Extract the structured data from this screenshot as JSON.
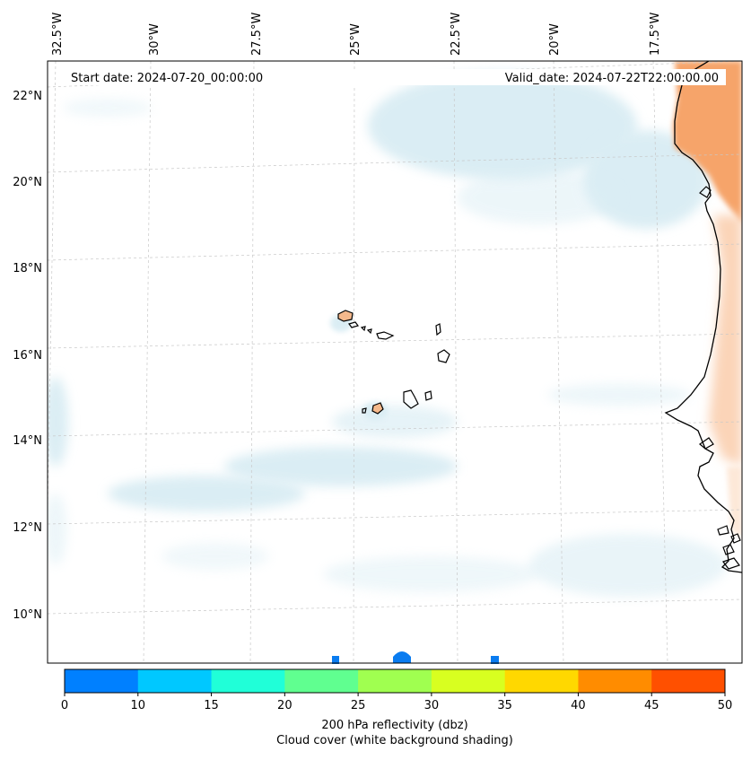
{
  "map": {
    "start_date": "Start date: 2024-07-20_00:00:00",
    "valid_date": "Valid_date: 2024-07-22T22:00:00.00",
    "lon_labels": [
      "32.5°W",
      "30°W",
      "27.5°W",
      "25°W",
      "22.5°W",
      "20°W",
      "17.5°W"
    ],
    "lat_labels": [
      "22°N",
      "20°N",
      "18°N",
      "16°N",
      "14°N",
      "12°N",
      "10°N"
    ]
  },
  "colorbar": {
    "ticks": [
      "0",
      "10",
      "15",
      "20",
      "25",
      "30",
      "35",
      "40",
      "45",
      "50"
    ],
    "colors": [
      "#0080ff",
      "#00c8ff",
      "#20ffd8",
      "#60ff90",
      "#a0ff50",
      "#d8ff20",
      "#ffd800",
      "#ff8c00",
      "#ff5000"
    ],
    "label_line1": "200 hPa reflectivity (dbz)",
    "label_line2": "Cloud cover (white background shading)"
  }
}
